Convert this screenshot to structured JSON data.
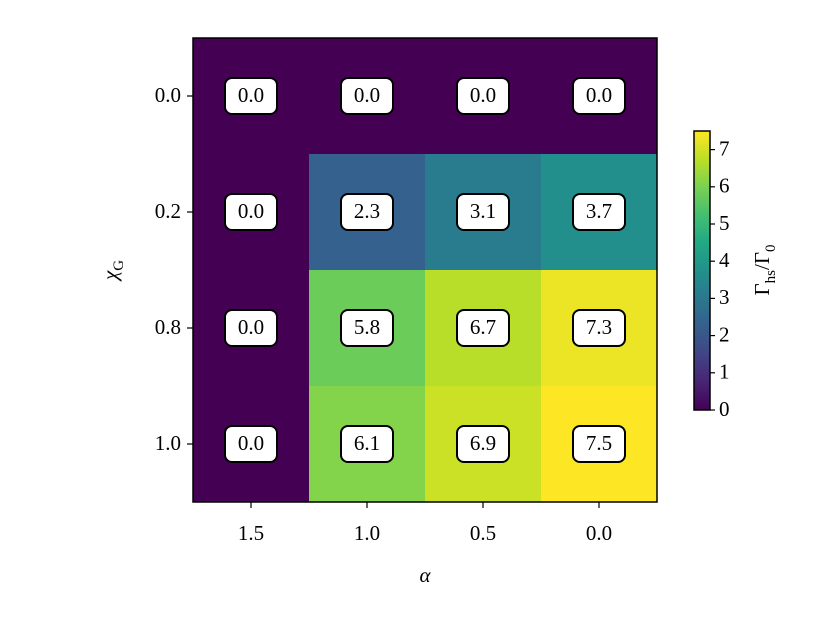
{
  "chart_data": {
    "type": "heatmap",
    "x_categories": [
      "1.5",
      "1.0",
      "0.5",
      "0.0"
    ],
    "y_categories": [
      "0.0",
      "0.2",
      "0.8",
      "1.0"
    ],
    "values": [
      [
        0,
        0,
        0,
        0
      ],
      [
        0,
        2.3,
        3.1,
        3.7
      ],
      [
        0,
        5.8,
        6.7,
        7.3
      ],
      [
        0,
        6.1,
        6.9,
        7.5
      ]
    ],
    "value_labels": [
      [
        "0.0",
        "0.0",
        "0.0",
        "0.0"
      ],
      [
        "0.0",
        "2.3",
        "3.1",
        "3.7"
      ],
      [
        "0.0",
        "5.8",
        "6.7",
        "7.3"
      ],
      [
        "0.0",
        "6.1",
        "6.9",
        "7.5"
      ]
    ],
    "xlabel": "α",
    "ylabel": [
      "χ",
      "G"
    ],
    "colorbar_label": [
      "Γ",
      "hs",
      "/Γ",
      "0"
    ],
    "colormap": "viridis",
    "zlim": [
      0,
      7.5
    ],
    "colorbar_ticks": [
      0,
      1,
      2,
      3,
      4,
      5,
      6,
      7
    ]
  }
}
